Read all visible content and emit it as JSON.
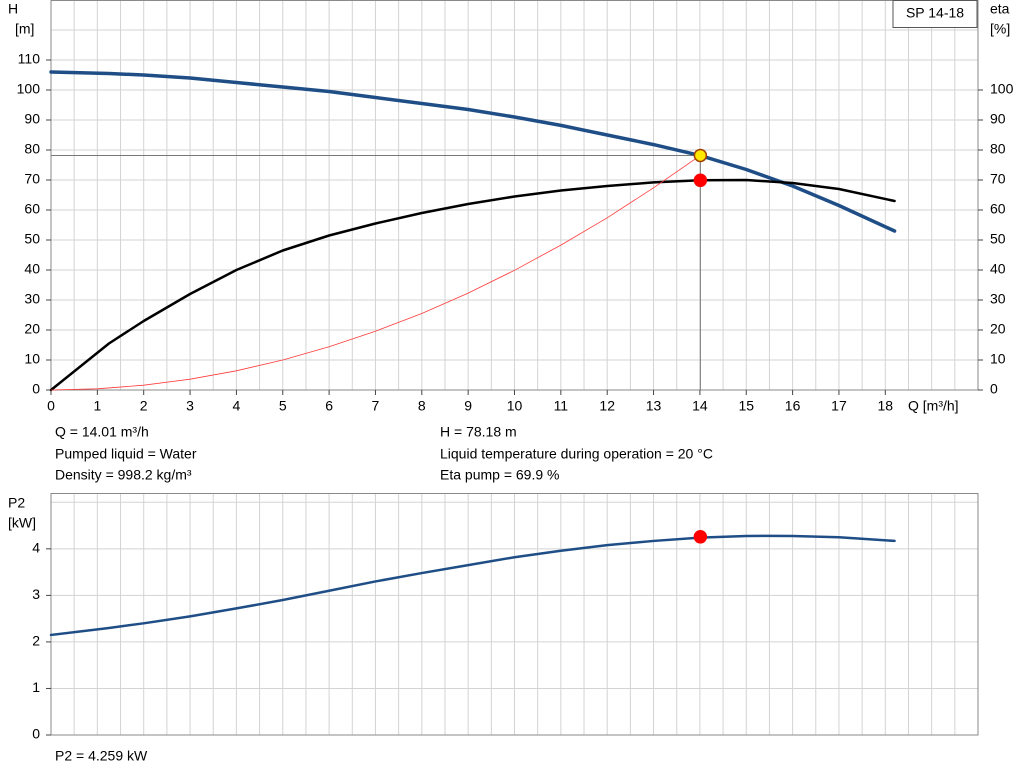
{
  "chart_data": [
    {
      "type": "line",
      "legend_title": "SP 14-18",
      "y_label": [
        "H",
        "[m]"
      ],
      "y2_label": [
        "eta",
        "[%]"
      ],
      "x_label": "Q [m³/h]",
      "xlim": [
        0,
        20
      ],
      "xticks": [
        0,
        1,
        2,
        3,
        4,
        5,
        6,
        7,
        8,
        9,
        10,
        11,
        12,
        13,
        14,
        15,
        16,
        17,
        18
      ],
      "x_grid_step": 0.5,
      "ylim": [
        0,
        130
      ],
      "yticks": [
        0,
        10,
        20,
        30,
        40,
        50,
        60,
        70,
        80,
        90,
        100,
        110
      ],
      "y_grid_step": 10,
      "y2lim": [
        0,
        130
      ],
      "y2ticks": [
        0,
        10,
        20,
        30,
        40,
        50,
        60,
        70,
        80,
        90,
        100
      ],
      "series": [
        {
          "name": "H",
          "color": "#1f4e87",
          "width": 3.5,
          "x": [
            0,
            1.25,
            2,
            3,
            4,
            5,
            6,
            7,
            8,
            9,
            10,
            11,
            12,
            13,
            14,
            15,
            16,
            17,
            18.2
          ],
          "values": [
            106,
            105.5,
            105,
            104,
            102.5,
            101,
            99.5,
            97.5,
            95.5,
            93.5,
            91,
            88.2,
            85,
            81.8,
            78.2,
            73.5,
            68,
            61.5,
            53
          ]
        },
        {
          "name": "eta",
          "color": "#000000",
          "width": 2.5,
          "axis": "y2",
          "x": [
            0,
            1.25,
            2,
            3,
            4,
            5,
            6,
            7,
            8,
            9,
            10,
            11,
            12,
            13,
            14,
            15,
            16,
            17,
            18.2
          ],
          "values": [
            0,
            15.5,
            23,
            32,
            40,
            46.5,
            51.5,
            55.5,
            59,
            62,
            64.5,
            66.5,
            68,
            69.2,
            69.9,
            70,
            69,
            67,
            63
          ]
        },
        {
          "name": "system",
          "color": "#ff3b3b",
          "width": 0.8,
          "x": [
            0,
            1,
            2,
            3,
            4,
            5,
            6,
            7,
            8,
            9,
            10,
            11,
            12,
            13,
            14.01
          ],
          "values": [
            0,
            0.4,
            1.6,
            3.6,
            6.4,
            10,
            14.4,
            19.6,
            25.5,
            32.3,
            39.9,
            48.3,
            57.4,
            67.4,
            78.18
          ]
        }
      ],
      "points": [
        {
          "x": 14.01,
          "y": 69.9,
          "axis": "y2",
          "color": "#ff0000"
        },
        {
          "x": 14.01,
          "y": 78.18,
          "color": "#ffe800"
        }
      ],
      "crosshair": true,
      "info": [
        "Q = 14.01 m³/h",
        "H = 78.18 m",
        "Pumped liquid = Water",
        "Liquid temperature during operation = 20 °C",
        "Density = 998.2 kg/m³",
        "Eta pump = 69.9 %"
      ]
    },
    {
      "type": "line",
      "y_label": [
        "P2",
        "[kW]"
      ],
      "xlim": [
        0,
        20
      ],
      "x_grid_step": 0.5,
      "ylim": [
        0,
        5.2
      ],
      "yticks": [
        0,
        1,
        2,
        3,
        4
      ],
      "y_grid_step": 1,
      "series": [
        {
          "name": "P2",
          "color": "#1f4e87",
          "width": 2.5,
          "x": [
            0,
            1.25,
            2,
            3,
            4,
            5,
            6,
            7,
            8,
            9,
            10,
            11,
            12,
            13,
            14,
            15,
            15.5,
            16,
            17,
            18.2
          ],
          "values": [
            2.15,
            2.3,
            2.4,
            2.55,
            2.72,
            2.9,
            3.1,
            3.3,
            3.48,
            3.65,
            3.82,
            3.96,
            4.08,
            4.17,
            4.24,
            4.275,
            4.28,
            4.275,
            4.25,
            4.17
          ]
        }
      ],
      "points": [
        {
          "x": 14.01,
          "y": 4.259,
          "color": "#ff0000"
        }
      ],
      "info": [
        "P2 = 4.259 kW"
      ]
    }
  ]
}
